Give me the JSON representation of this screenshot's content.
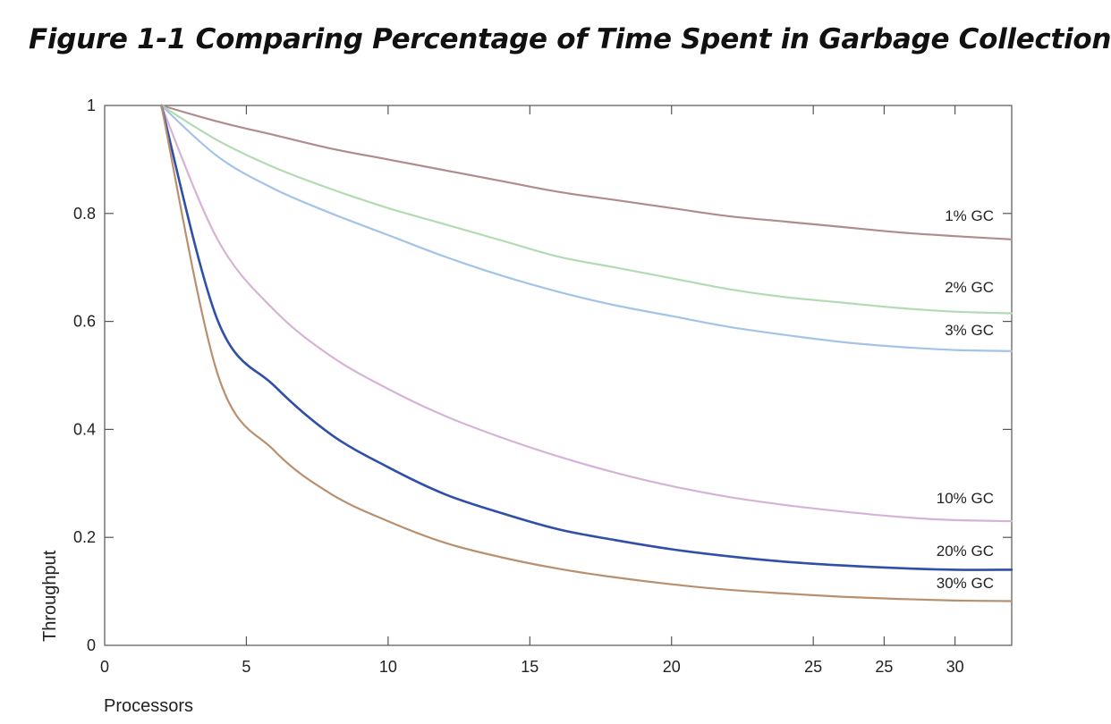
{
  "chart_data": {
    "type": "line",
    "title": "Figure 1-1 Comparing Percentage of Time Spent in Garbage Collection",
    "xlabel": "Processors",
    "ylabel": "Throughput",
    "xlim": [
      0,
      32
    ],
    "ylim": [
      0,
      1
    ],
    "x_ticks": [
      0,
      5,
      10,
      15,
      20,
      25,
      30
    ],
    "x_tick_labels": [
      "0",
      "5",
      "10",
      "15",
      "20",
      "25",
      "25",
      "30"
    ],
    "y_ticks": [
      0,
      0.2,
      0.4,
      0.6,
      0.8,
      1
    ],
    "y_tick_labels": [
      "0",
      "0.2",
      "0.4",
      "0.6",
      "0.8",
      "1"
    ],
    "x": [
      2,
      4,
      6,
      8,
      10,
      12,
      14,
      16,
      18,
      20,
      22,
      24,
      26,
      28,
      30,
      32
    ],
    "series": [
      {
        "name": "1% GC",
        "color": "#b08c8c",
        "values": [
          1.0,
          0.97,
          0.945,
          0.92,
          0.9,
          0.88,
          0.86,
          0.84,
          0.825,
          0.81,
          0.795,
          0.785,
          0.775,
          0.765,
          0.758,
          0.752
        ]
      },
      {
        "name": "2% GC",
        "color": "#b3dbb3",
        "values": [
          1.0,
          0.935,
          0.885,
          0.845,
          0.81,
          0.78,
          0.75,
          0.72,
          0.7,
          0.68,
          0.66,
          0.645,
          0.635,
          0.625,
          0.618,
          0.615
        ]
      },
      {
        "name": "3% GC",
        "color": "#a3c4e6",
        "values": [
          1.0,
          0.905,
          0.845,
          0.8,
          0.76,
          0.72,
          0.685,
          0.655,
          0.63,
          0.61,
          0.59,
          0.575,
          0.562,
          0.553,
          0.547,
          0.545
        ]
      },
      {
        "name": "10% GC",
        "color": "#d6b3d6",
        "values": [
          1.0,
          0.75,
          0.62,
          0.535,
          0.475,
          0.425,
          0.385,
          0.35,
          0.32,
          0.295,
          0.275,
          0.26,
          0.248,
          0.238,
          0.232,
          0.23
        ]
      },
      {
        "name": "20% GC",
        "color": "#2f4fa8",
        "values": [
          1.0,
          0.6,
          0.48,
          0.39,
          0.33,
          0.28,
          0.245,
          0.215,
          0.195,
          0.178,
          0.165,
          0.155,
          0.148,
          0.143,
          0.14,
          0.14
        ]
      },
      {
        "name": "30% GC",
        "color": "#b89070",
        "values": [
          1.0,
          0.5,
          0.36,
          0.28,
          0.23,
          0.19,
          0.163,
          0.142,
          0.126,
          0.113,
          0.103,
          0.096,
          0.09,
          0.086,
          0.083,
          0.082
        ]
      }
    ],
    "grid": false,
    "legend": "inline labels at right end of each line"
  }
}
